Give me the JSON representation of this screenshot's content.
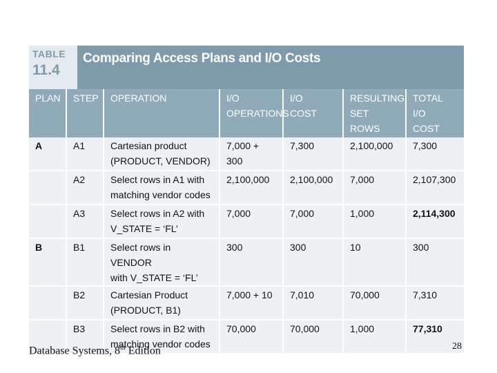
{
  "table": {
    "label_word": "TABLE",
    "label_number": "11.4",
    "title": "Comparing Access Plans and I/O Costs",
    "columns": [
      [
        "PLAN"
      ],
      [
        "STEP"
      ],
      [
        "OPERATION"
      ],
      [
        "I/O",
        "OPERATIONS"
      ],
      [
        "I/O",
        "COST"
      ],
      [
        "RESULTING",
        "SET ROWS"
      ],
      [
        "TOTAL I/O",
        "COST"
      ]
    ],
    "rows": [
      {
        "plan": "A",
        "step": "A1",
        "operation": [
          "Cartesian product",
          "(PRODUCT, VENDOR)"
        ],
        "io_operations": "7,000 + 300",
        "io_cost": "7,300",
        "resulting_rows": "2,100,000",
        "total_cost": "7,300",
        "total_bold": false
      },
      {
        "plan": "",
        "step": "A2",
        "operation": [
          "Select rows in A1 with",
          "matching vendor codes"
        ],
        "io_operations": "2,100,000",
        "io_cost": "2,100,000",
        "resulting_rows": "7,000",
        "total_cost": "2,107,300",
        "total_bold": false
      },
      {
        "plan": "",
        "step": "A3",
        "operation": [
          "Select rows in A2 with",
          "V_STATE = ‘FL’"
        ],
        "io_operations": "7,000",
        "io_cost": "7,000",
        "resulting_rows": "1,000",
        "total_cost": "2,114,300",
        "total_bold": true
      },
      {
        "plan": "B",
        "step": "B1",
        "operation": [
          "Select rows in VENDOR",
          "with V_STATE = ‘FL’"
        ],
        "io_operations": "300",
        "io_cost": "300",
        "resulting_rows": "10",
        "total_cost": "300",
        "total_bold": false
      },
      {
        "plan": "",
        "step": "B2",
        "operation": [
          "Cartesian Product",
          "(PRODUCT, B1)"
        ],
        "io_operations": "7,000 + 10",
        "io_cost": "7,010",
        "resulting_rows": "70,000",
        "total_cost": "7,310",
        "total_bold": false
      },
      {
        "plan": "",
        "step": "B3",
        "operation": [
          "Select rows in B2 with",
          "matching vendor codes"
        ],
        "io_operations": "70,000",
        "io_cost": "70,000",
        "resulting_rows": "1,000",
        "total_cost": "77,310",
        "total_bold": true
      }
    ]
  },
  "footer": {
    "book_prefix": "Database Systems, 8",
    "book_sup": "th",
    "book_suffix": " Edition",
    "page_number": "28"
  },
  "colors": {
    "header_bar": "#7f9aab",
    "column_header": "#8faab9",
    "cell_background": "#eef1f3"
  }
}
